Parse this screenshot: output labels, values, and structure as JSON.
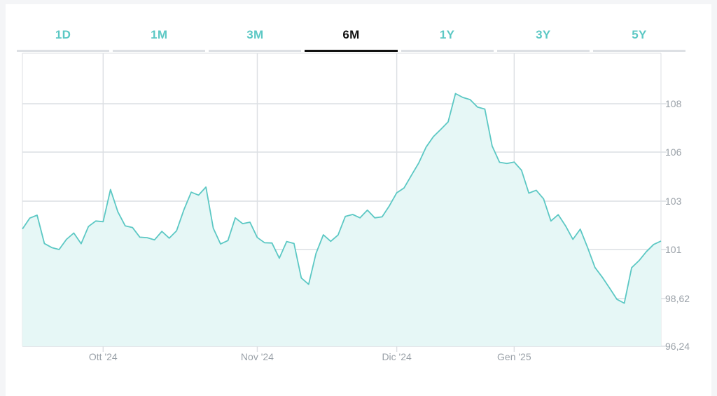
{
  "tabs": [
    {
      "label": "1D",
      "active": false
    },
    {
      "label": "1M",
      "active": false
    },
    {
      "label": "3M",
      "active": false
    },
    {
      "label": "6M",
      "active": true
    },
    {
      "label": "1Y",
      "active": false
    },
    {
      "label": "3Y",
      "active": false
    },
    {
      "label": "5Y",
      "active": false
    }
  ],
  "colors": {
    "line": "#5cc8c4",
    "fill": "#e6f7f6",
    "tab_accent": "#5cc8c4",
    "grid": "#dcdfe3"
  },
  "chart_data": {
    "type": "area",
    "x_tick_labels": [
      "Ott '24",
      "Nov '24",
      "Dic '24",
      "Gen '25"
    ],
    "x_tick_index": [
      11,
      32,
      51,
      67
    ],
    "y_tick_labels": [
      "108",
      "106",
      "103",
      "101",
      "98,62",
      "96,24"
    ],
    "y_tick_values": [
      108,
      106,
      103,
      101,
      98.62,
      96.24
    ],
    "ylim": [
      96.24,
      108
    ],
    "grid": true,
    "values": [
      101.85,
      102.3,
      102.42,
      101.25,
      101.08,
      101.0,
      101.42,
      101.68,
      101.24,
      101.95,
      102.18,
      102.15,
      103.71,
      102.56,
      101.98,
      101.91,
      101.51,
      101.49,
      101.4,
      101.75,
      101.47,
      101.77,
      102.64,
      103.55,
      103.37,
      103.86,
      101.88,
      101.23,
      101.37,
      102.31,
      102.07,
      102.13,
      101.5,
      101.28,
      101.27,
      100.58,
      101.33,
      101.25,
      99.62,
      99.31,
      100.81,
      101.61,
      101.34,
      101.6,
      102.37,
      102.45,
      102.31,
      102.63,
      102.31,
      102.35,
      102.81,
      103.51,
      103.81,
      104.58,
      105.34,
      106.21,
      106.64,
      106.94,
      107.25,
      108.42,
      108.26,
      108.17,
      107.86,
      107.78,
      106.25,
      105.38,
      105.3,
      105.39,
      104.89,
      103.49,
      103.67,
      103.14,
      102.18,
      102.44,
      101.98,
      101.42,
      101.84,
      101.08,
      100.13,
      99.66,
      99.13,
      98.58,
      98.39,
      100.12,
      100.46,
      100.89,
      101.21,
      101.35
    ]
  }
}
